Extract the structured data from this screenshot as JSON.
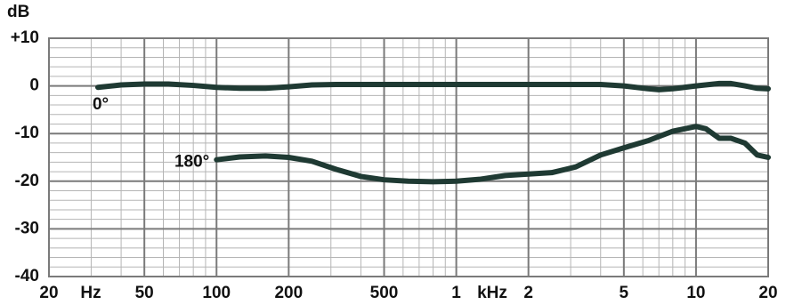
{
  "chart_data": {
    "type": "line",
    "ylabel": "dB",
    "x_units": [
      "Hz",
      "kHz"
    ],
    "xscale": "log",
    "xlim": [
      20,
      20000
    ],
    "xticks": [
      20,
      50,
      100,
      200,
      500,
      {
        "value": 1000,
        "label": "1"
      },
      {
        "value": 2000,
        "label": "2"
      },
      {
        "value": 5000,
        "label": "5"
      },
      {
        "value": 10000,
        "label": "10"
      },
      {
        "value": 20000,
        "label": "20"
      }
    ],
    "ylim": [
      -40,
      10
    ],
    "yticks": [
      {
        "value": 10,
        "label": "+10"
      },
      0,
      -10,
      -20,
      -30,
      -40
    ],
    "grid": true,
    "series": [
      {
        "name": "0°",
        "color": "#1f3a33",
        "x": [
          32,
          40,
          50,
          63,
          80,
          100,
          125,
          160,
          200,
          250,
          315,
          500,
          1000,
          2000,
          4000,
          5000,
          6300,
          7000,
          8000,
          10000,
          12500,
          14000,
          16000,
          18000,
          20000
        ],
        "values": [
          -0.3,
          0.2,
          0.4,
          0.4,
          0.1,
          -0.3,
          -0.5,
          -0.5,
          -0.2,
          0.2,
          0.3,
          0.3,
          0.3,
          0.3,
          0.3,
          0,
          -0.6,
          -0.8,
          -0.6,
          0,
          0.5,
          0.5,
          0,
          -0.5,
          -0.6
        ]
      },
      {
        "name": "180°",
        "color": "#1f3a33",
        "x": [
          100,
          125,
          160,
          200,
          250,
          315,
          400,
          500,
          630,
          800,
          1000,
          1250,
          1600,
          2000,
          2500,
          3150,
          4000,
          5000,
          6300,
          8000,
          10000,
          11000,
          12500,
          14000,
          16000,
          18000,
          20000
        ],
        "values": [
          -15.5,
          -14.9,
          -14.7,
          -15,
          -15.8,
          -17.5,
          -19,
          -19.7,
          -20,
          -20.1,
          -20,
          -19.6,
          -18.8,
          -18.5,
          -18.2,
          -17,
          -14.5,
          -13,
          -11.5,
          -9.5,
          -8.5,
          -9,
          -11,
          -11,
          -12,
          -14.5,
          -15
        ]
      }
    ]
  }
}
